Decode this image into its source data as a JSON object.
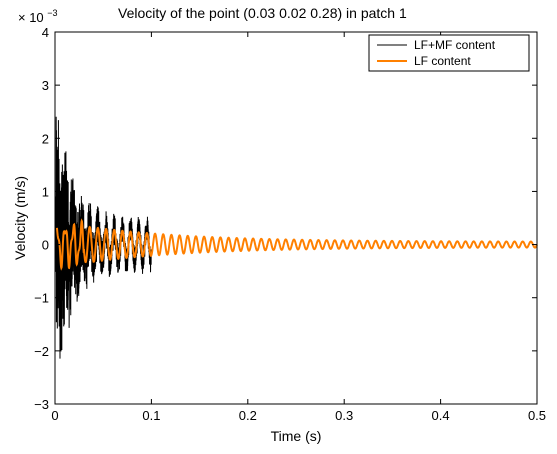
{
  "chart_data": {
    "type": "line",
    "title": "Velocity of the point (0.03 0.02 0.28) in patch 1",
    "xlabel": "Time (s)",
    "ylabel": "Velocity (m/s)",
    "y_scale_factor": "× 10",
    "y_scale_exponent": "−3",
    "xlim": [
      0,
      0.5
    ],
    "ylim": [
      -3,
      4
    ],
    "x_ticks": [
      "0",
      "0.1",
      "0.2",
      "0.3",
      "0.4",
      "0.5"
    ],
    "y_ticks": [
      "−3",
      "−2",
      "−1",
      "0",
      "1",
      "2",
      "3",
      "4"
    ],
    "legend_position": "top-right",
    "grid": false,
    "series": [
      {
        "name": "LF+MF content",
        "color": "#000000",
        "description_values": {
          "t_end": 0.1,
          "peak_max": 3.0,
          "peak_min": -2.7
        }
      },
      {
        "name": "LF content",
        "color": "#ff8000",
        "description_values": {
          "t_end": 0.5,
          "initial_amplitude": 0.35,
          "frequency_hz": 118
        }
      }
    ]
  }
}
